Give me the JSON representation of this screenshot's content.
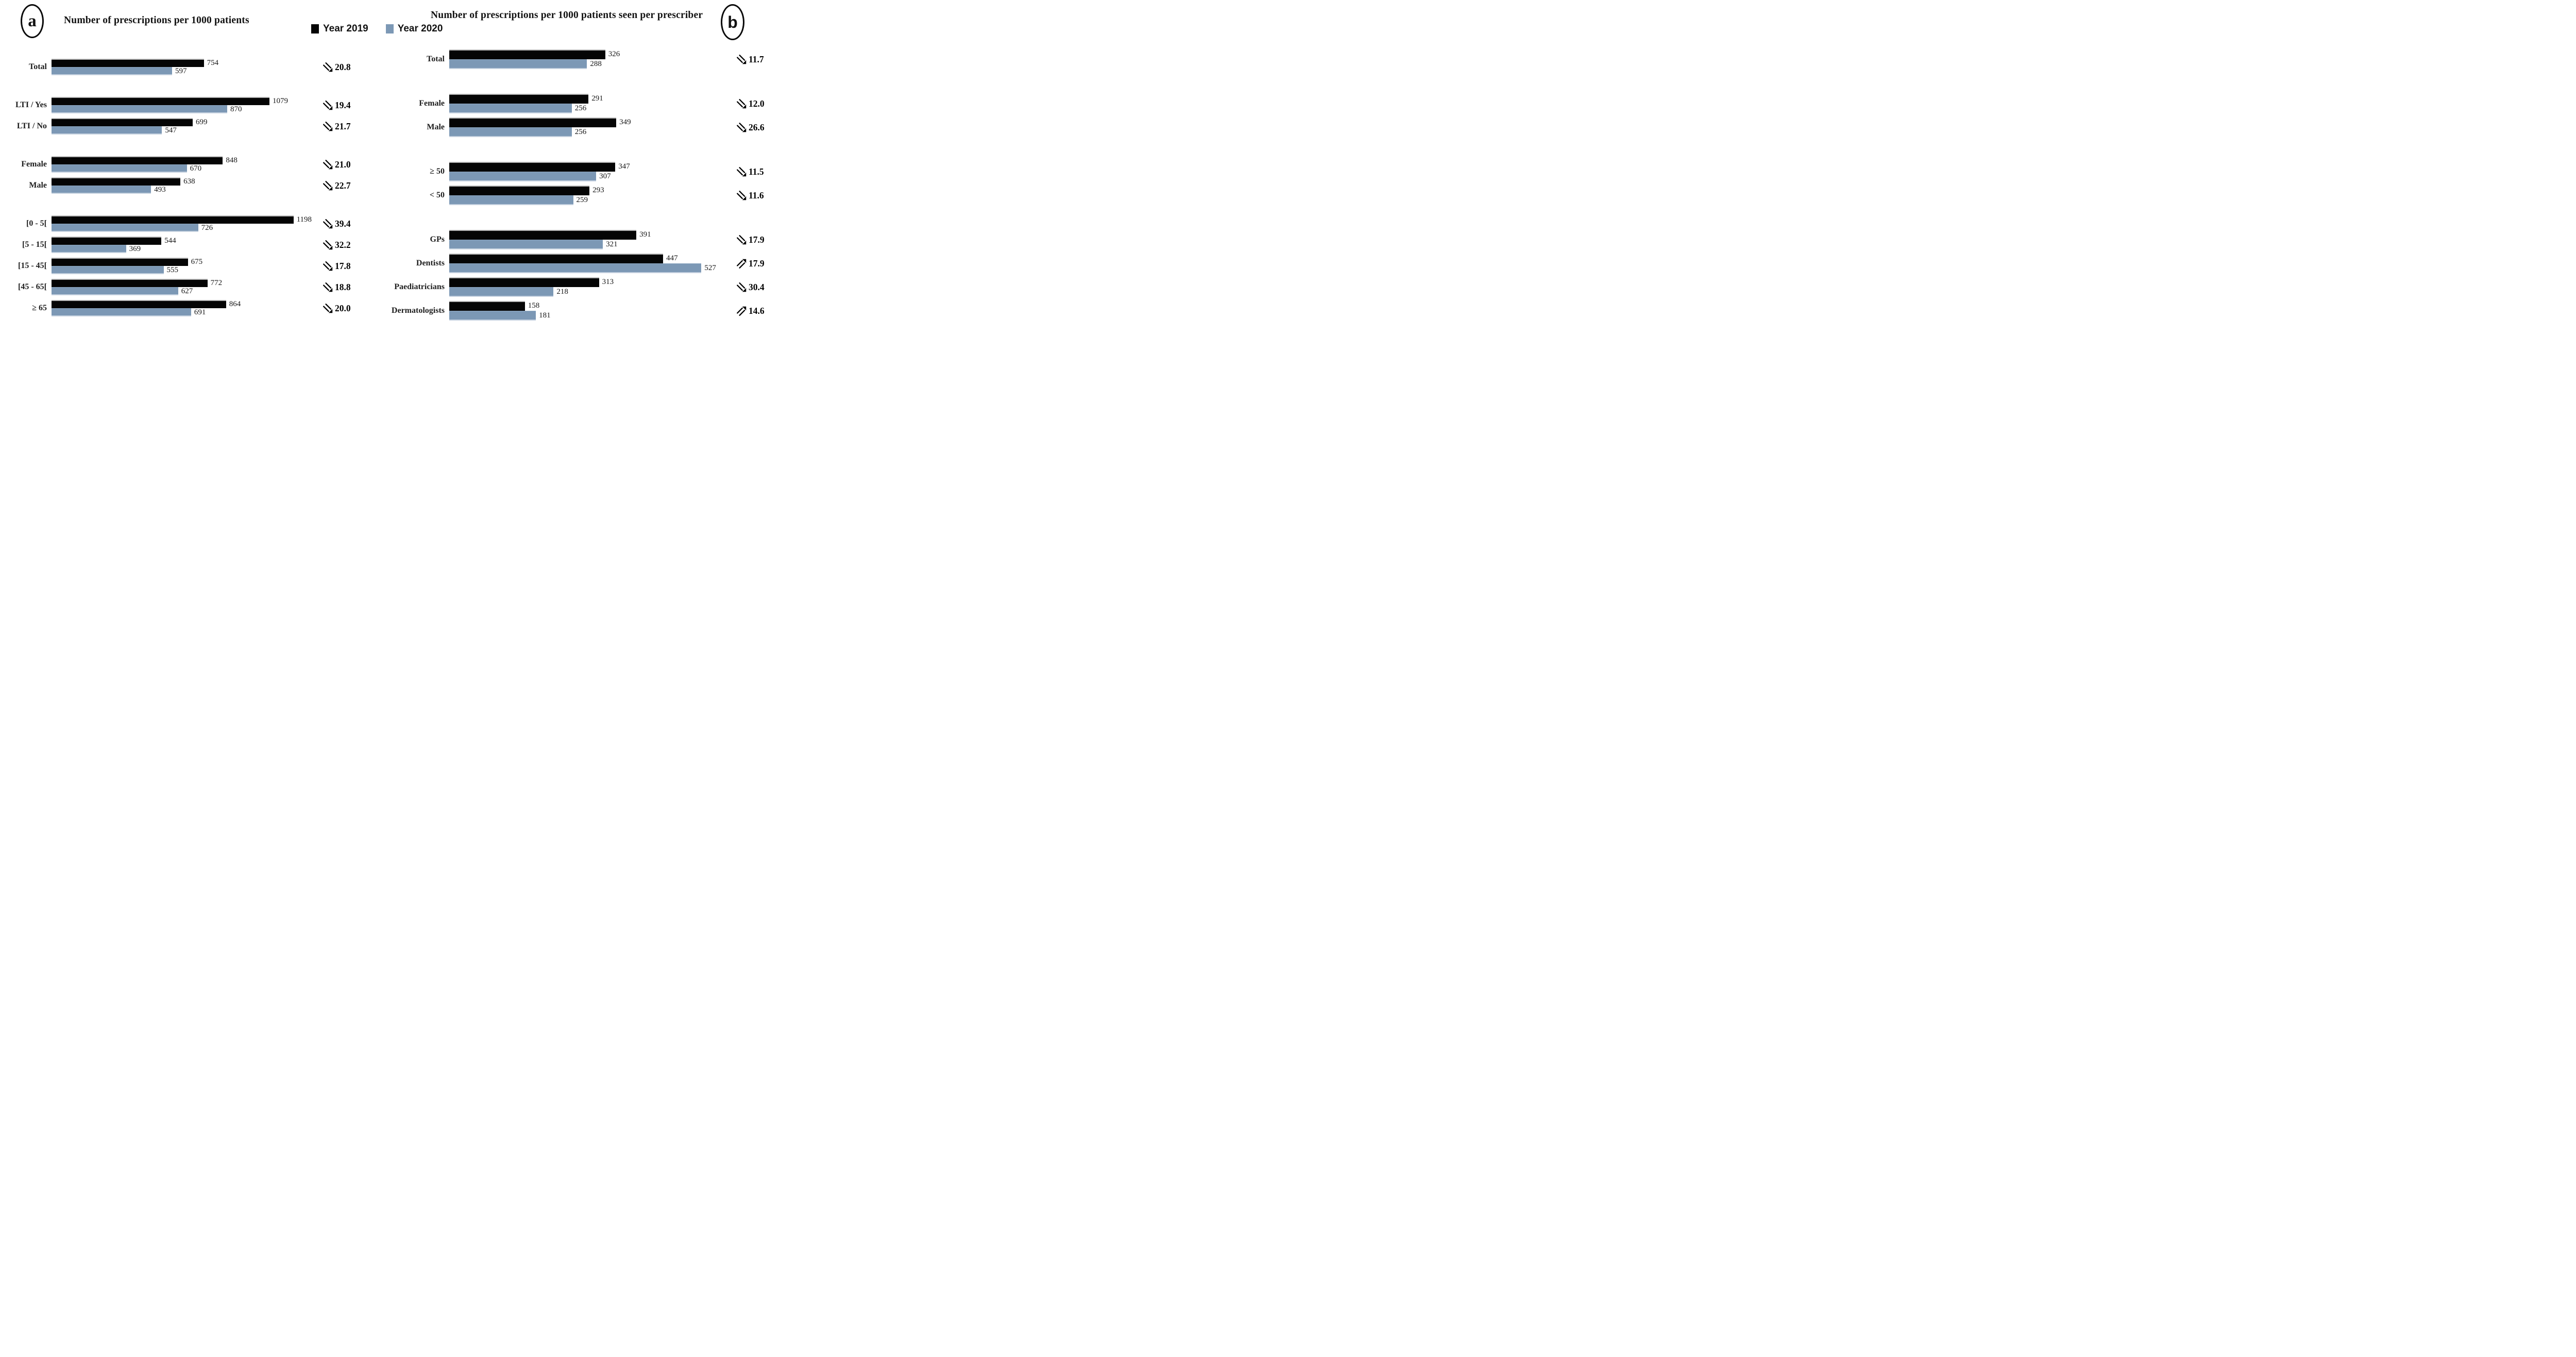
{
  "legend": {
    "items": [
      {
        "label": "Year 2019",
        "color": "#050505"
      },
      {
        "label": "Year 2020",
        "color": "#7C98B5"
      }
    ]
  },
  "chart_data": [
    {
      "id": "a",
      "badge": "a",
      "type": "bar",
      "orientation": "horizontal",
      "title": "Number of prescriptions per 1000 patients",
      "grid": false,
      "legend_position": "top-center",
      "xlim": [
        0,
        1250
      ],
      "categories": [
        "Total",
        "LTI / Yes",
        "LTI / No",
        "Female",
        "Male",
        "[0 - 5[",
        "[5 - 15[",
        "[15 - 45[",
        "[45 - 65[",
        "≥ 65"
      ],
      "series": [
        {
          "name": "Year 2019",
          "color": "#050505",
          "values": [
            754,
            1079,
            699,
            848,
            638,
            1198,
            544,
            675,
            772,
            864
          ]
        },
        {
          "name": "Year 2020",
          "color": "#7C98B5",
          "values": [
            597,
            870,
            547,
            670,
            493,
            726,
            369,
            555,
            627,
            691
          ]
        }
      ],
      "pct_change": [
        {
          "value": "20.8",
          "direction": "down"
        },
        {
          "value": "19.4",
          "direction": "down"
        },
        {
          "value": "21.7",
          "direction": "down"
        },
        {
          "value": "21.0",
          "direction": "down"
        },
        {
          "value": "22.7",
          "direction": "down"
        },
        {
          "value": "39.4",
          "direction": "down"
        },
        {
          "value": "32.2",
          "direction": "down"
        },
        {
          "value": "17.8",
          "direction": "down"
        },
        {
          "value": "18.8",
          "direction": "down"
        },
        {
          "value": "20.0",
          "direction": "down"
        }
      ],
      "groups": [
        [
          0
        ],
        [
          1,
          2
        ],
        [
          3,
          4
        ],
        [
          5,
          6,
          7,
          8,
          9
        ]
      ]
    },
    {
      "id": "b",
      "badge": "b",
      "type": "bar",
      "orientation": "horizontal",
      "title": "Number of prescriptions per 1000 patients seen per prescriber",
      "grid": false,
      "legend_position": "top-center",
      "xlim": [
        0,
        560
      ],
      "categories": [
        "Total",
        "Female",
        "Male",
        "≥ 50",
        "< 50",
        "GPs",
        "Dentists",
        "Paediatricians",
        "Dermatologists"
      ],
      "series": [
        {
          "name": "Year 2019",
          "color": "#050505",
          "values": [
            326,
            291,
            349,
            347,
            293,
            391,
            447,
            313,
            158
          ]
        },
        {
          "name": "Year 2020",
          "color": "#7C98B5",
          "values": [
            288,
            256,
            256,
            307,
            259,
            321,
            527,
            218,
            181
          ]
        }
      ],
      "pct_change": [
        {
          "value": "11.7",
          "direction": "down"
        },
        {
          "value": "12.0",
          "direction": "down"
        },
        {
          "value": "26.6",
          "direction": "down"
        },
        {
          "value": "11.5",
          "direction": "down"
        },
        {
          "value": "11.6",
          "direction": "down"
        },
        {
          "value": "17.9",
          "direction": "down"
        },
        {
          "value": "17.9",
          "direction": "up"
        },
        {
          "value": "30.4",
          "direction": "down"
        },
        {
          "value": "14.6",
          "direction": "up"
        }
      ],
      "groups": [
        [
          0
        ],
        [
          1,
          2
        ],
        [
          3,
          4
        ],
        [
          5,
          6,
          7,
          8
        ]
      ]
    }
  ]
}
